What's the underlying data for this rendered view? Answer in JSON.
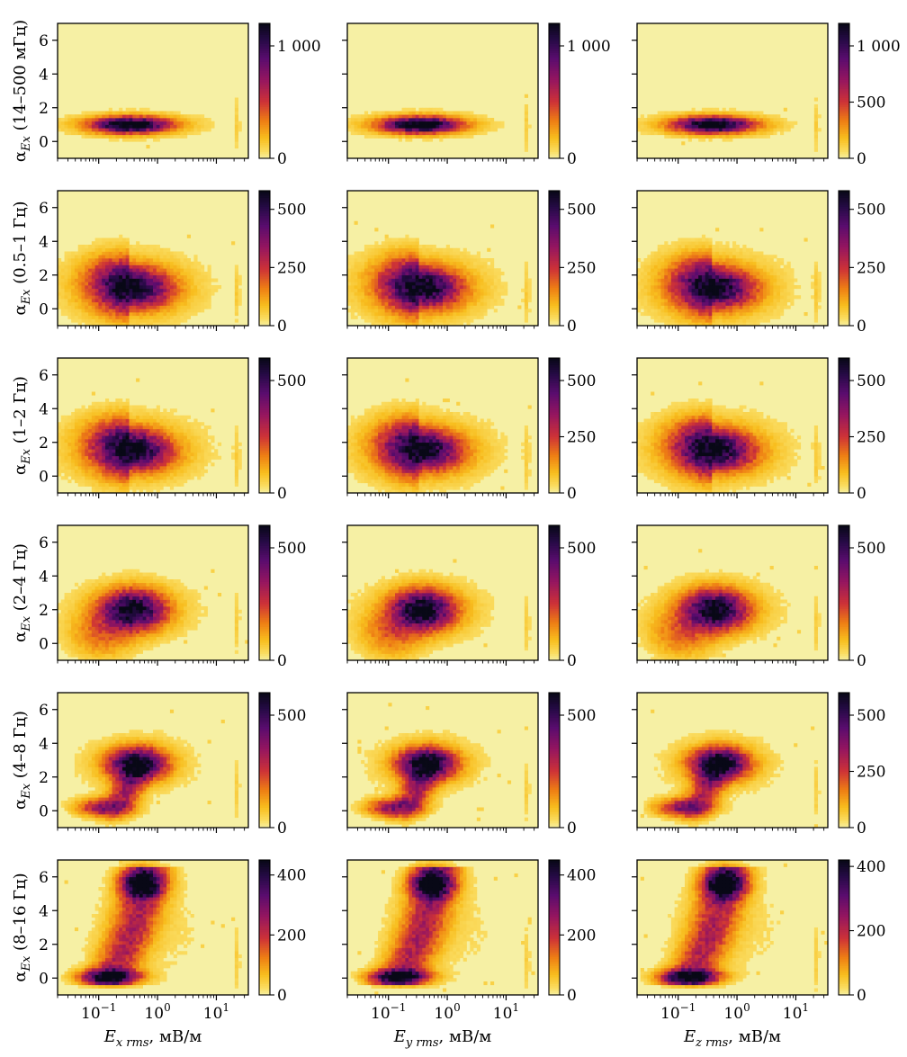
{
  "figure": {
    "type": "heatmap-grid",
    "colormap": "inferno_r",
    "background": "#f6f0a4",
    "rows": 6,
    "cols": 3
  },
  "chart_data": {
    "type": "heatmap",
    "x_scale": "log",
    "xlim": [
      0.02,
      35
    ],
    "ylim": [
      -1,
      7
    ],
    "x_ticks": [
      {
        "value": 0.1,
        "base": "10",
        "exp": "−1"
      },
      {
        "value": 1,
        "base": "10",
        "exp": "0"
      },
      {
        "value": 10,
        "base": "10",
        "exp": "1"
      }
    ],
    "y_ticks": [
      0,
      2,
      4,
      6
    ],
    "rows": [
      {
        "band": "14–500 мГц",
        "ylabel": {
          "alpha": "α",
          "sub": "Ex",
          "rest": " (14–500 мГц)"
        },
        "peak": {
          "x": 0.35,
          "y": 1.0
        },
        "panels": [
          {
            "vmax": 1200,
            "ticks": [
              {
                "v": 0,
                "label": "0"
              },
              {
                "v": 1000,
                "label": "1 000"
              }
            ]
          },
          {
            "vmax": 1200,
            "ticks": [
              {
                "v": 0,
                "label": "0"
              },
              {
                "v": 1000,
                "label": "1 000"
              }
            ]
          },
          {
            "vmax": 1200,
            "ticks": [
              {
                "v": 0,
                "label": "0"
              },
              {
                "v": 500,
                "label": "500"
              },
              {
                "v": 1000,
                "label": "1 000"
              }
            ]
          }
        ]
      },
      {
        "band": "0.5–1 Гц",
        "ylabel": {
          "alpha": "α",
          "sub": "Ex",
          "rest": " (0.5–1 Гц)"
        },
        "peak": {
          "x": 0.35,
          "y": 1.3
        },
        "panels": [
          {
            "vmax": 580,
            "ticks": [
              {
                "v": 0,
                "label": "0"
              },
              {
                "v": 250,
                "label": "250"
              },
              {
                "v": 500,
                "label": "500"
              }
            ]
          },
          {
            "vmax": 580,
            "ticks": [
              {
                "v": 0,
                "label": "0"
              },
              {
                "v": 250,
                "label": "250"
              },
              {
                "v": 500,
                "label": "500"
              }
            ]
          },
          {
            "vmax": 580,
            "ticks": [
              {
                "v": 0,
                "label": "0"
              },
              {
                "v": 250,
                "label": "250"
              },
              {
                "v": 500,
                "label": "500"
              }
            ]
          }
        ]
      },
      {
        "band": "1–2 Гц",
        "ylabel": {
          "alpha": "α",
          "sub": "Ex",
          "rest": " (1–2 Гц)"
        },
        "peak": {
          "x": 0.35,
          "y": 1.6
        },
        "panels": [
          {
            "vmax": 600,
            "ticks": [
              {
                "v": 0,
                "label": "0"
              },
              {
                "v": 500,
                "label": "500"
              }
            ]
          },
          {
            "vmax": 600,
            "ticks": [
              {
                "v": 0,
                "label": "0"
              },
              {
                "v": 250,
                "label": "250"
              },
              {
                "v": 500,
                "label": "500"
              }
            ]
          },
          {
            "vmax": 600,
            "ticks": [
              {
                "v": 0,
                "label": "0"
              },
              {
                "v": 250,
                "label": "250"
              },
              {
                "v": 500,
                "label": "500"
              }
            ]
          }
        ]
      },
      {
        "band": "2–4 Гц",
        "ylabel": {
          "alpha": "α",
          "sub": "Ex",
          "rest": " (2–4 Гц)"
        },
        "peak": {
          "x": 0.38,
          "y": 2.0
        },
        "panels": [
          {
            "vmax": 600,
            "ticks": [
              {
                "v": 0,
                "label": "0"
              },
              {
                "v": 500,
                "label": "500"
              }
            ]
          },
          {
            "vmax": 600,
            "ticks": [
              {
                "v": 0,
                "label": "0"
              },
              {
                "v": 500,
                "label": "500"
              }
            ]
          },
          {
            "vmax": 600,
            "ticks": [
              {
                "v": 0,
                "label": "0"
              },
              {
                "v": 500,
                "label": "500"
              }
            ]
          }
        ]
      },
      {
        "band": "4–8 Гц",
        "ylabel": {
          "alpha": "α",
          "sub": "Ex",
          "rest": " (4–8 Гц)"
        },
        "peak": {
          "x": 0.45,
          "y": 2.8
        },
        "panels": [
          {
            "vmax": 600,
            "ticks": [
              {
                "v": 0,
                "label": "0"
              },
              {
                "v": 500,
                "label": "500"
              }
            ]
          },
          {
            "vmax": 600,
            "ticks": [
              {
                "v": 0,
                "label": "0"
              },
              {
                "v": 500,
                "label": "500"
              }
            ]
          },
          {
            "vmax": 600,
            "ticks": [
              {
                "v": 0,
                "label": "0"
              },
              {
                "v": 250,
                "label": "250"
              },
              {
                "v": 500,
                "label": "500"
              }
            ]
          }
        ]
      },
      {
        "band": "8–16 Гц",
        "ylabel": {
          "alpha": "α",
          "sub": "Ex",
          "rest": " (8–16 Гц)"
        },
        "peak": {
          "x": 0.55,
          "y": 5.6
        },
        "panels": [
          {
            "vmax": 450,
            "ticks": [
              {
                "v": 0,
                "label": "0"
              },
              {
                "v": 200,
                "label": "200"
              },
              {
                "v": 400,
                "label": "400"
              }
            ]
          },
          {
            "vmax": 450,
            "ticks": [
              {
                "v": 0,
                "label": "0"
              },
              {
                "v": 200,
                "label": "200"
              },
              {
                "v": 400,
                "label": "400"
              }
            ]
          },
          {
            "vmax": 420,
            "ticks": [
              {
                "v": 0,
                "label": "0"
              },
              {
                "v": 200,
                "label": "200"
              },
              {
                "v": 400,
                "label": "400"
              }
            ]
          }
        ]
      }
    ],
    "x_labels": [
      {
        "var": "E",
        "sub": "x rms",
        "unit": ", мВ/м"
      },
      {
        "var": "E",
        "sub": "y rms",
        "unit": ", мВ/м"
      },
      {
        "var": "E",
        "sub": "z rms",
        "unit": ", мВ/м"
      }
    ]
  }
}
